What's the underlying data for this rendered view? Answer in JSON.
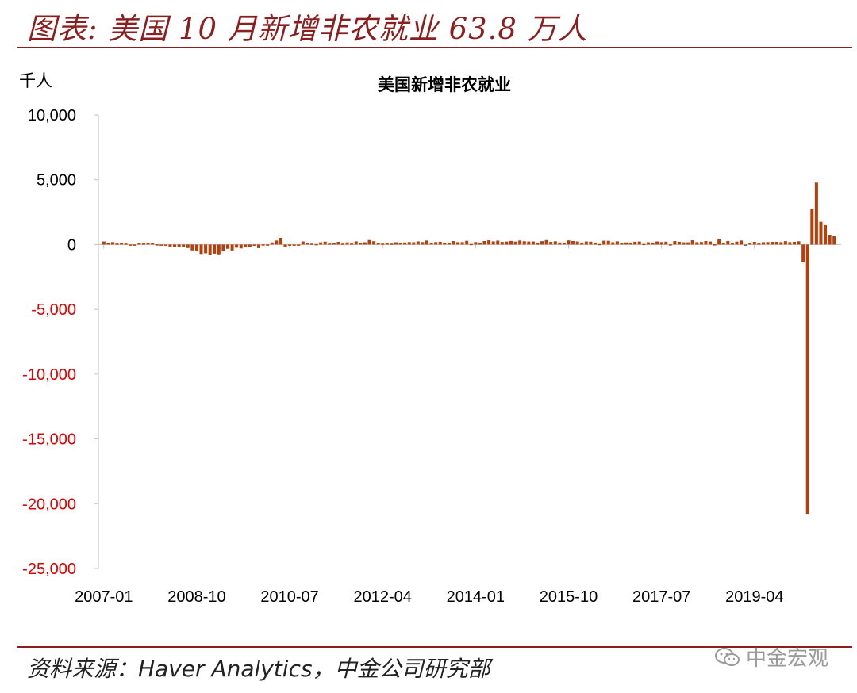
{
  "header": {
    "title": "图表: 美国 10 月新增非农就业 63.8 万人"
  },
  "footer": {
    "source": "资料来源：Haver Analytics，中金公司研究部",
    "watermark": "中金宏观",
    "watermark_icon": "wechat-icon"
  },
  "colors": {
    "accent": "#8b1f1f",
    "bar": "#b5400c",
    "negative_tick": "#e00000",
    "tick": "#000000",
    "axis": "#bfbfbf"
  },
  "chart_data": {
    "type": "bar",
    "title": "美国新增非农就业",
    "ylabel": "千人",
    "xlabel": "",
    "ylim": [
      -25000,
      10000
    ],
    "yticks": [
      10000,
      5000,
      0,
      -5000,
      -10000,
      -15000,
      -20000,
      -25000
    ],
    "ytick_labels": [
      "10,000",
      "5,000",
      "0",
      "-5,000",
      "-10,000",
      "-15,000",
      "-20,000",
      "-25,000"
    ],
    "xtick_labels": [
      "2007-01",
      "2008-10",
      "2010-07",
      "2012-04",
      "2014-01",
      "2015-10",
      "2017-07",
      "2019-04"
    ],
    "x_start": "2007-01",
    "x_end": "2020-10",
    "grid": false,
    "legend": "none",
    "series": [
      {
        "values": [
          238,
          90,
          189,
          80,
          143,
          77,
          4,
          -25,
          88,
          84,
          114,
          97,
          17,
          -84,
          -78,
          -210,
          -186,
          -162,
          -213,
          -267,
          -450,
          -481,
          -729,
          -673,
          -787,
          -704,
          -753,
          -528,
          -328,
          -456,
          -242,
          -298,
          -221,
          -204,
          -2,
          -275,
          11,
          -49,
          164,
          310,
          516,
          -166,
          -77,
          -51,
          -27,
          241,
          137,
          71,
          37,
          168,
          225,
          78,
          115,
          209,
          74,
          166,
          78,
          246,
          138,
          176,
          348,
          259,
          143,
          75,
          134,
          74,
          177,
          122,
          158,
          192,
          178,
          242,
          190,
          311,
          135,
          192,
          218,
          146,
          140,
          269,
          185,
          189,
          291,
          45,
          190,
          151,
          272,
          329,
          246,
          304,
          202,
          230,
          280,
          227,
          312,
          255,
          234,
          238,
          86,
          262,
          344,
          206,
          254,
          157,
          100,
          321,
          272,
          239,
          126,
          237,
          225,
          153,
          43,
          297,
          291,
          176,
          249,
          124,
          164,
          155,
          216,
          232,
          50,
          175,
          155,
          239,
          190,
          221,
          14,
          271,
          216,
          175,
          171,
          330,
          182,
          196,
          270,
          235,
          19,
          437,
          108,
          277,
          111,
          227,
          312,
          1,
          147,
          210,
          85,
          182,
          194,
          207,
          208,
          185,
          261,
          184,
          214,
          251,
          -1373,
          -20787,
          2725,
          4781,
          1761,
          1493,
          711,
          638
        ]
      }
    ]
  }
}
